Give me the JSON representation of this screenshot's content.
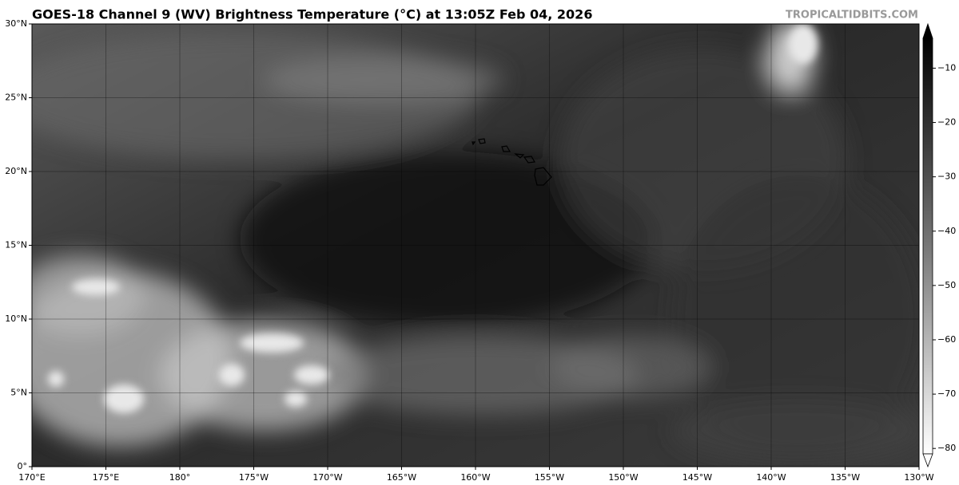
{
  "title": "GOES-18 Channel 9 (WV) Brightness Temperature (°C) at 13:05Z Feb 04, 2026",
  "watermark": "TROPICALTIDBITS.COM",
  "map": {
    "lat_range": [
      0,
      30
    ],
    "lon_range": [
      170,
      -130
    ],
    "lat_ticks": [
      {
        "value": 0,
        "label": "0°"
      },
      {
        "value": 5,
        "label": "5°N"
      },
      {
        "value": 10,
        "label": "10°N"
      },
      {
        "value": 15,
        "label": "15°N"
      },
      {
        "value": 20,
        "label": "20°N"
      },
      {
        "value": 25,
        "label": "25°N"
      },
      {
        "value": 30,
        "label": "30°N"
      }
    ],
    "lon_ticks": [
      {
        "value": 170,
        "label": "170°E"
      },
      {
        "value": 175,
        "label": "175°E"
      },
      {
        "value": 180,
        "label": "180°"
      },
      {
        "value": -175,
        "label": "175°W"
      },
      {
        "value": -170,
        "label": "170°W"
      },
      {
        "value": -165,
        "label": "165°W"
      },
      {
        "value": -160,
        "label": "160°W"
      },
      {
        "value": -155,
        "label": "155°W"
      },
      {
        "value": -150,
        "label": "150°W"
      },
      {
        "value": -145,
        "label": "145°W"
      },
      {
        "value": -140,
        "label": "140°W"
      },
      {
        "value": -135,
        "label": "135°W"
      },
      {
        "value": -130,
        "label": "130°W"
      }
    ]
  },
  "colorbar": {
    "range": [
      -4.5,
      -81
    ],
    "ticks": [
      {
        "value": -10,
        "label": "−10"
      },
      {
        "value": -20,
        "label": "−20"
      },
      {
        "value": -30,
        "label": "−30"
      },
      {
        "value": -40,
        "label": "−40"
      },
      {
        "value": -50,
        "label": "−50"
      },
      {
        "value": -60,
        "label": "−60"
      },
      {
        "value": -70,
        "label": "−70"
      },
      {
        "value": -80,
        "label": "−80"
      }
    ]
  }
}
